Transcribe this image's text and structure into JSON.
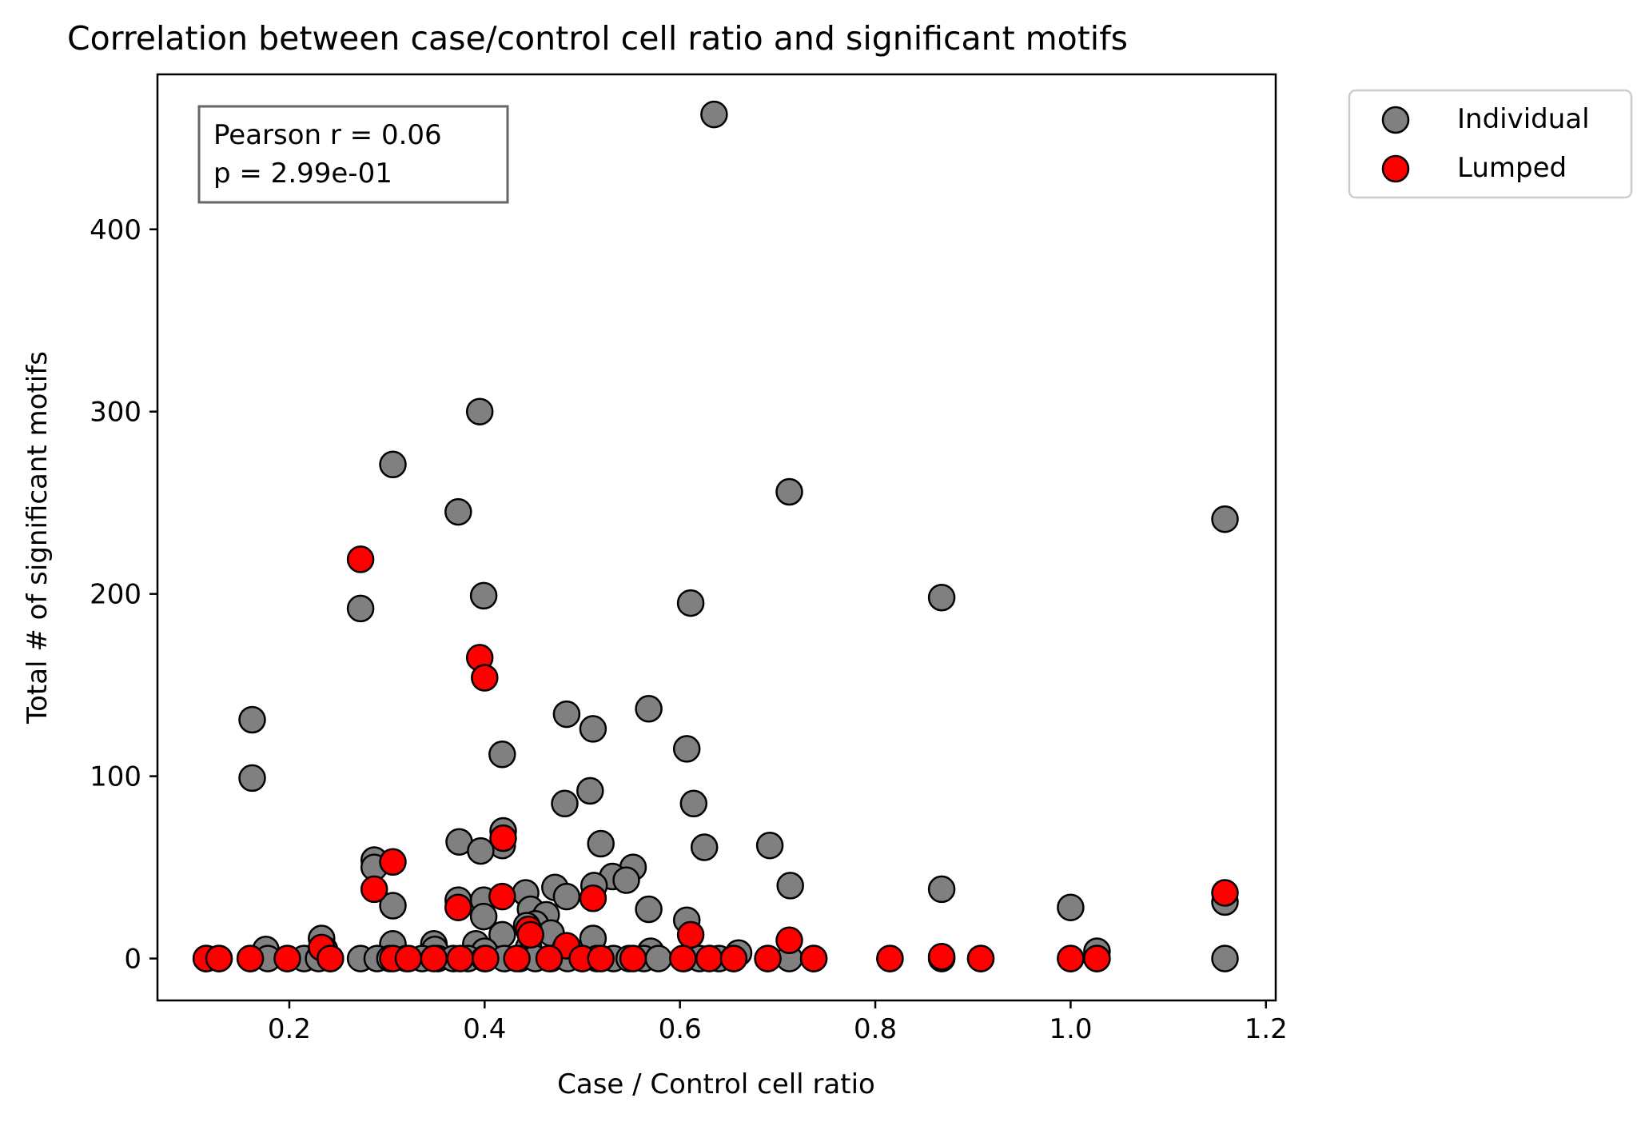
{
  "chart_data": {
    "type": "scatter",
    "title": "Correlation between case/control cell ratio and significant motifs",
    "xlabel": "Case / Control cell ratio",
    "ylabel": "Total # of significant motifs",
    "xlim": [
      0.065,
      1.21
    ],
    "ylim": [
      -23,
      485
    ],
    "xticks": [
      0.2,
      0.4,
      0.6,
      0.8,
      1.0,
      1.2
    ],
    "xtick_labels": [
      "0.2",
      "0.4",
      "0.6",
      "0.8",
      "1.0",
      "1.2"
    ],
    "yticks": [
      0,
      100,
      200,
      300,
      400
    ],
    "ytick_labels": [
      "0",
      "100",
      "200",
      "300",
      "400"
    ],
    "grid": false,
    "legend_position": "outside-top-right",
    "annotation": {
      "lines": [
        "Pearson r = 0.06",
        "p = 2.99e-01"
      ]
    },
    "series": [
      {
        "name": "Individual",
        "color": "#808080",
        "edge_color": "#000000",
        "points": [
          [
            0.635,
            463
          ],
          [
            0.395,
            300
          ],
          [
            0.306,
            271
          ],
          [
            0.712,
            256
          ],
          [
            0.373,
            245
          ],
          [
            1.158,
            241
          ],
          [
            0.399,
            199
          ],
          [
            0.868,
            198
          ],
          [
            0.611,
            195
          ],
          [
            0.273,
            192
          ],
          [
            0.162,
            131
          ],
          [
            0.568,
            137
          ],
          [
            0.484,
            134
          ],
          [
            0.511,
            126
          ],
          [
            0.607,
            115
          ],
          [
            0.418,
            112
          ],
          [
            0.162,
            99
          ],
          [
            0.508,
            92
          ],
          [
            0.614,
            85
          ],
          [
            0.482,
            85
          ],
          [
            0.419,
            70
          ],
          [
            0.374,
            64
          ],
          [
            0.519,
            63
          ],
          [
            0.625,
            61
          ],
          [
            0.692,
            62
          ],
          [
            0.418,
            62
          ],
          [
            0.396,
            59
          ],
          [
            0.287,
            54
          ],
          [
            0.287,
            50
          ],
          [
            0.552,
            50
          ],
          [
            0.531,
            45
          ],
          [
            0.545,
            43
          ],
          [
            0.512,
            40
          ],
          [
            0.713,
            40
          ],
          [
            0.472,
            39
          ],
          [
            0.442,
            36
          ],
          [
            0.868,
            38
          ],
          [
            0.484,
            34
          ],
          [
            0.399,
            32
          ],
          [
            0.373,
            32
          ],
          [
            1.158,
            31
          ],
          [
            0.306,
            29
          ],
          [
            1.0,
            28
          ],
          [
            0.568,
            27
          ],
          [
            0.447,
            27
          ],
          [
            0.463,
            24
          ],
          [
            0.399,
            23
          ],
          [
            0.607,
            21
          ],
          [
            0.452,
            19
          ],
          [
            0.443,
            18
          ],
          [
            0.468,
            14
          ],
          [
            0.418,
            13
          ],
          [
            0.511,
            11
          ],
          [
            0.233,
            11
          ],
          [
            0.306,
            8
          ],
          [
            0.348,
            8
          ],
          [
            0.391,
            8
          ],
          [
            0.445,
            6
          ],
          [
            0.483,
            6
          ],
          [
            0.176,
            5
          ],
          [
            0.236,
            5
          ],
          [
            0.349,
            5
          ],
          [
            0.4,
            4
          ],
          [
            0.57,
            4
          ],
          [
            1.027,
            4
          ],
          [
            0.66,
            3
          ],
          [
            0.115,
            0
          ],
          [
            0.128,
            0
          ],
          [
            0.16,
            0
          ],
          [
            0.178,
            0
          ],
          [
            0.198,
            0
          ],
          [
            0.215,
            0
          ],
          [
            0.23,
            0
          ],
          [
            0.242,
            0
          ],
          [
            0.273,
            0
          ],
          [
            0.29,
            0
          ],
          [
            0.303,
            0
          ],
          [
            0.32,
            0
          ],
          [
            0.336,
            0
          ],
          [
            0.352,
            0
          ],
          [
            0.368,
            0
          ],
          [
            0.383,
            0
          ],
          [
            0.4,
            0
          ],
          [
            0.42,
            0
          ],
          [
            0.436,
            0
          ],
          [
            0.452,
            0
          ],
          [
            0.468,
            0
          ],
          [
            0.485,
            0
          ],
          [
            0.5,
            0
          ],
          [
            0.515,
            0
          ],
          [
            0.532,
            0
          ],
          [
            0.548,
            0
          ],
          [
            0.563,
            0
          ],
          [
            0.578,
            0
          ],
          [
            0.604,
            0
          ],
          [
            0.62,
            0
          ],
          [
            0.64,
            0
          ],
          [
            0.655,
            0
          ],
          [
            0.69,
            0
          ],
          [
            0.712,
            0
          ],
          [
            0.737,
            0
          ],
          [
            0.815,
            0
          ],
          [
            0.868,
            0
          ],
          [
            0.908,
            0
          ],
          [
            1.0,
            0
          ],
          [
            1.027,
            0
          ],
          [
            1.158,
            0
          ]
        ]
      },
      {
        "name": "Lumped",
        "color": "#ff0000",
        "edge_color": "#000000",
        "points": [
          [
            0.273,
            219
          ],
          [
            0.395,
            165
          ],
          [
            0.4,
            154
          ],
          [
            0.419,
            66
          ],
          [
            0.306,
            53
          ],
          [
            0.287,
            38
          ],
          [
            1.158,
            36
          ],
          [
            0.418,
            34
          ],
          [
            0.511,
            33
          ],
          [
            0.373,
            28
          ],
          [
            0.445,
            16
          ],
          [
            0.447,
            13
          ],
          [
            0.611,
            13
          ],
          [
            0.712,
            10
          ],
          [
            0.484,
            7
          ],
          [
            0.233,
            6
          ],
          [
            0.306,
            0
          ],
          [
            0.868,
            1
          ],
          [
            0.115,
            0
          ],
          [
            0.128,
            0
          ],
          [
            0.16,
            0
          ],
          [
            0.198,
            0
          ],
          [
            0.242,
            0
          ],
          [
            0.322,
            0
          ],
          [
            0.348,
            0
          ],
          [
            0.375,
            0
          ],
          [
            0.401,
            0
          ],
          [
            0.433,
            0
          ],
          [
            0.466,
            0
          ],
          [
            0.5,
            0
          ],
          [
            0.519,
            0
          ],
          [
            0.552,
            0
          ],
          [
            0.603,
            0
          ],
          [
            0.63,
            0
          ],
          [
            0.655,
            0
          ],
          [
            0.69,
            0
          ],
          [
            0.737,
            0
          ],
          [
            0.815,
            0
          ],
          [
            0.908,
            0
          ],
          [
            1.0,
            0
          ],
          [
            1.027,
            0
          ]
        ]
      }
    ]
  }
}
